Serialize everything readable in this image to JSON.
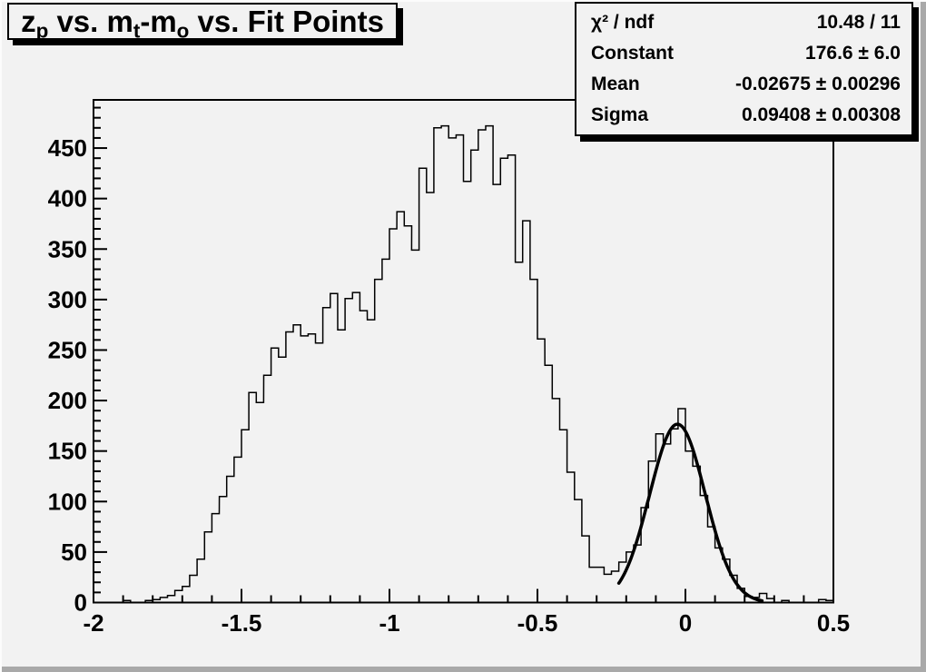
{
  "window": {
    "background": "#f2f2f2",
    "bevel_light": "#fcfcfc",
    "bevel_dark": "#a9a9a9",
    "line_color": "#000000"
  },
  "title_box": {
    "segments": [
      {
        "text": "z",
        "sub": "p"
      },
      {
        "text": " vs. m",
        "sub": "t"
      },
      {
        "text": "-m",
        "sub": "o"
      },
      {
        "text": " vs. Fit Points",
        "sub": ""
      }
    ],
    "plain": "z_p vs. m_t-m_o vs. Fit Points"
  },
  "stats_box": {
    "rows": [
      {
        "label": "χ² / ndf",
        "value": "10.48 / 11"
      },
      {
        "label": "Constant",
        "value": "176.6 ± 6.0"
      },
      {
        "label": "Mean",
        "value": "-0.02675 ± 0.00296"
      },
      {
        "label": "Sigma",
        "value": "0.09408 ± 0.00308"
      }
    ]
  },
  "chart_data": {
    "type": "bar",
    "subtype": "step-histogram",
    "title": "z_p vs. m_t-m_o vs. Fit Points",
    "xlabel": "",
    "ylabel": "",
    "grid": false,
    "legend": false,
    "xlim": [
      -2,
      0.5
    ],
    "ylim": [
      0,
      497.7
    ],
    "bin_start": -2,
    "bin_width": 0.025,
    "values": [
      0,
      0,
      0,
      0,
      2,
      0,
      0,
      2,
      3,
      5,
      7,
      12,
      16,
      27,
      43,
      70,
      88,
      105,
      125,
      144,
      171,
      208,
      198,
      225,
      252,
      243,
      268,
      275,
      264,
      266,
      257,
      292,
      306,
      270,
      301,
      307,
      289,
      280,
      320,
      340,
      370,
      387,
      373,
      349,
      430,
      406,
      470,
      472,
      460,
      463,
      417,
      448,
      468,
      472,
      414,
      440,
      443,
      337,
      378,
      320,
      261,
      235,
      202,
      171,
      129,
      102,
      66,
      35,
      35,
      28,
      31,
      40,
      50,
      57,
      94,
      140,
      167,
      157,
      172,
      192,
      150,
      135,
      106,
      75,
      54,
      43,
      27,
      14,
      6,
      5,
      9,
      4,
      0,
      2,
      0,
      0,
      0,
      0,
      3,
      2
    ],
    "x_ticks": {
      "major": [
        -2,
        -1.5,
        -1,
        -0.5,
        0,
        0.5
      ],
      "labels": [
        "-2",
        "-1.5",
        "-1",
        "-0.5",
        "0",
        "0.5"
      ],
      "minor_step": 0.1
    },
    "y_ticks": {
      "major": [
        0,
        50,
        100,
        150,
        200,
        250,
        300,
        350,
        400,
        450
      ],
      "labels": [
        "0",
        "50",
        "100",
        "150",
        "200",
        "250",
        "300",
        "350",
        "400",
        "450"
      ],
      "minor_step": 10
    },
    "fit": {
      "model": "gaussian",
      "constant": 176.6,
      "mean": -0.02675,
      "sigma": 0.09408,
      "draw_range": [
        -0.225,
        0.26
      ],
      "color": "#000000",
      "stroke_width": 3.5
    },
    "hist_color": "#000000"
  }
}
